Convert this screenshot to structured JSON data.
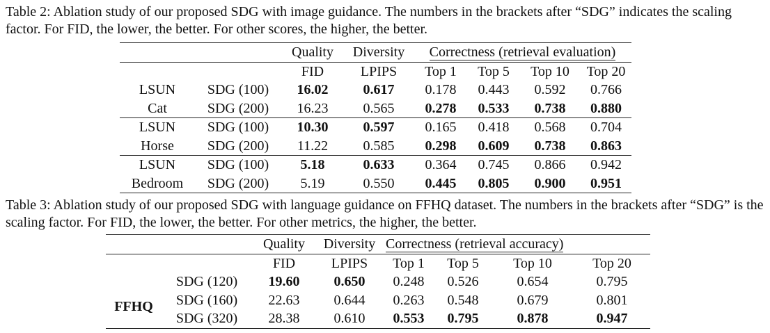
{
  "table2": {
    "caption": "Table 2: Ablation study of our proposed SDG with image guidance. The numbers in the brackets after “SDG” indicates the scaling factor. For FID, the lower, the better. For other scores, the higher, the better.",
    "group_headers": [
      "Quality",
      "Diversity",
      "Correctness (retrieval evaluation)"
    ],
    "sub_headers": [
      "FID",
      "LPIPS",
      "Top 1",
      "Top 5",
      "Top 10",
      "Top 20"
    ],
    "rows": [
      {
        "dataset": "LSUN",
        "method": "SDG (100)",
        "values": [
          "16.02",
          "0.617",
          "0.178",
          "0.443",
          "0.592",
          "0.766"
        ],
        "bold": [
          true,
          true,
          false,
          false,
          false,
          false
        ]
      },
      {
        "dataset": "Cat",
        "method": "SDG (200)",
        "values": [
          "16.23",
          "0.565",
          "0.278",
          "0.533",
          "0.738",
          "0.880"
        ],
        "bold": [
          false,
          false,
          true,
          true,
          true,
          true
        ]
      },
      {
        "dataset": "LSUN",
        "method": "SDG (100)",
        "values": [
          "10.30",
          "0.597",
          "0.165",
          "0.418",
          "0.568",
          "0.704"
        ],
        "bold": [
          true,
          true,
          false,
          false,
          false,
          false
        ]
      },
      {
        "dataset": "Horse",
        "method": "SDG (200)",
        "values": [
          "11.22",
          "0.585",
          "0.298",
          "0.609",
          "0.738",
          "0.863"
        ],
        "bold": [
          false,
          false,
          true,
          true,
          true,
          true
        ]
      },
      {
        "dataset": "LSUN",
        "method": "SDG (100)",
        "values": [
          "5.18",
          "0.633",
          "0.364",
          "0.745",
          "0.866",
          "0.942"
        ],
        "bold": [
          true,
          true,
          false,
          false,
          false,
          false
        ]
      },
      {
        "dataset": "Bedroom",
        "method": "SDG (200)",
        "values": [
          "5.19",
          "0.550",
          "0.445",
          "0.805",
          "0.900",
          "0.951"
        ],
        "bold": [
          false,
          false,
          true,
          true,
          true,
          true
        ]
      }
    ]
  },
  "table3": {
    "caption": "Table 3: Ablation study of our proposed SDG with language guidance on FFHQ dataset. The numbers in the brackets after “SDG” is the scaling factor. For FID, the lower, the better. For other metrics, the higher, the better.",
    "group_headers": [
      "Quality",
      "Diversity",
      "Correctness (retrieval accuracy)"
    ],
    "sub_headers": [
      "FID",
      "LPIPS",
      "Top 1",
      "Top 5",
      "Top 10",
      "Top 20"
    ],
    "dataset": "FFHQ",
    "rows": [
      {
        "method": "SDG (120)",
        "values": [
          "19.60",
          "0.650",
          "0.248",
          "0.526",
          "0.654",
          "0.795"
        ],
        "bold": [
          true,
          true,
          false,
          false,
          false,
          false
        ]
      },
      {
        "method": "SDG (160)",
        "values": [
          "22.63",
          "0.644",
          "0.263",
          "0.548",
          "0.679",
          "0.801"
        ],
        "bold": [
          false,
          false,
          false,
          false,
          false,
          false
        ]
      },
      {
        "method": "SDG (320)",
        "values": [
          "28.38",
          "0.610",
          "0.553",
          "0.795",
          "0.878",
          "0.947"
        ],
        "bold": [
          false,
          false,
          true,
          true,
          true,
          true
        ]
      }
    ]
  }
}
